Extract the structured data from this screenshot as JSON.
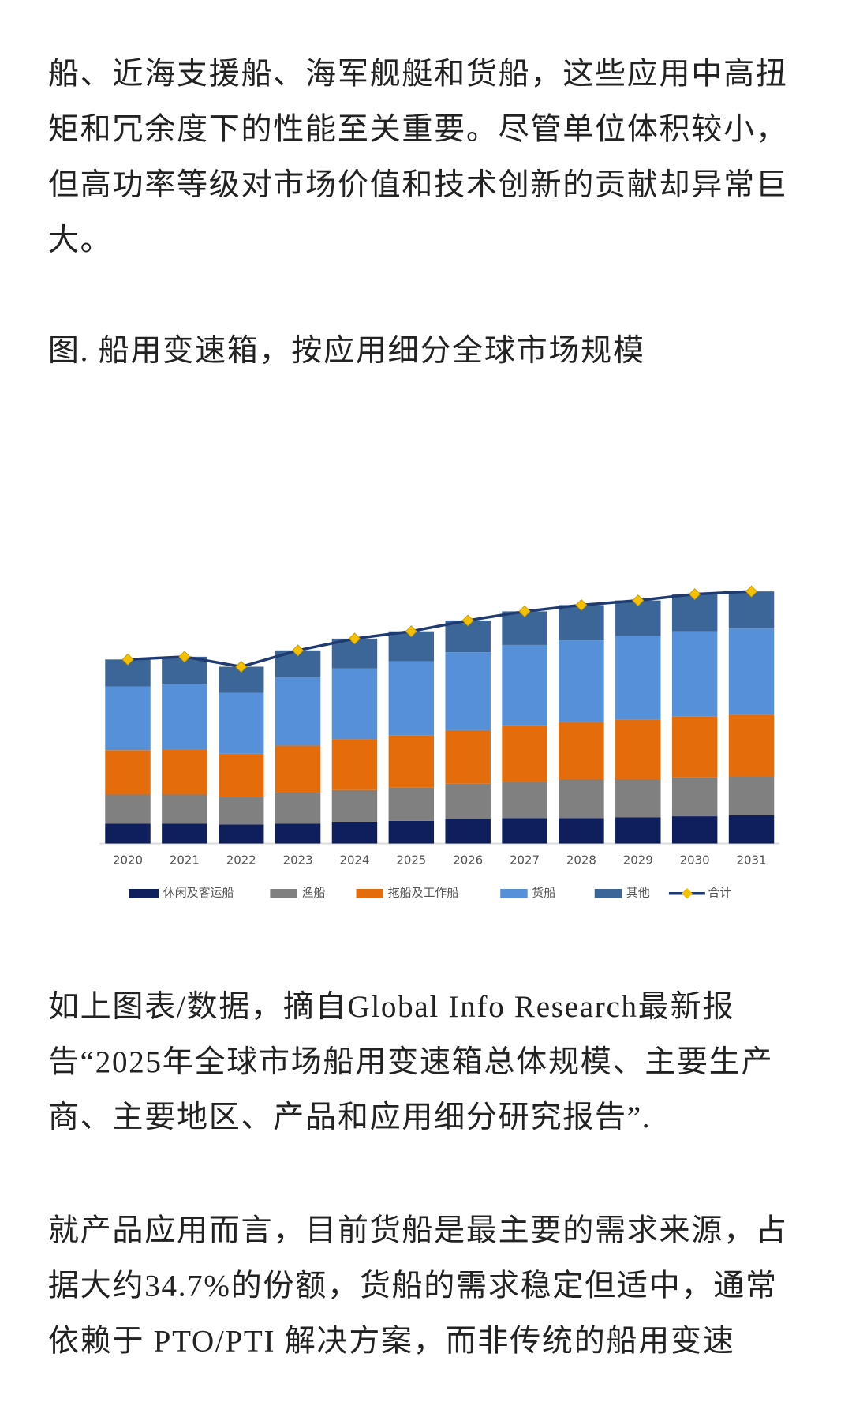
{
  "intro": {
    "lines": [
      "船、近海支援船、海军舰艇和货船，这些应用中高扭",
      "矩和冗余度下的性能至关重要。尽管单位体积较小，",
      "但高功率等级对市场价值和技术创新的贡献却异常巨",
      "大。"
    ]
  },
  "caption": "图. 船用变速箱，按应用细分全球市场规模",
  "chart_data": {
    "type": "bar",
    "stacked": true,
    "categories": [
      "2020",
      "2021",
      "2022",
      "2023",
      "2024",
      "2025",
      "2026",
      "2027",
      "2028",
      "2029",
      "2030",
      "2031"
    ],
    "series": [
      {
        "name": "休闲及客运船",
        "color": "#0f1f5e",
        "values": [
          22,
          22,
          21,
          22,
          24,
          25,
          27,
          28,
          28,
          29,
          30,
          31
        ]
      },
      {
        "name": "渔船",
        "color": "#808080",
        "values": [
          32,
          32,
          30,
          34,
          35,
          37,
          39,
          40,
          43,
          42,
          43,
          43
        ]
      },
      {
        "name": "拖船及工作船",
        "color": "#e46c0a",
        "values": [
          49,
          50,
          48,
          52,
          56,
          57,
          59,
          62,
          63,
          66,
          67,
          68
        ]
      },
      {
        "name": "货船",
        "color": "#5590d8",
        "values": [
          70,
          72,
          67,
          75,
          78,
          82,
          86,
          89,
          90,
          92,
          94,
          95
        ]
      },
      {
        "name": "其他",
        "color": "#3d6698",
        "values": [
          30,
          30,
          29,
          30,
          33,
          33,
          35,
          37,
          39,
          39,
          41,
          41
        ]
      },
      {
        "name": "合计",
        "type": "line",
        "color": "#1f3a70",
        "marker_color": "#f5c000",
        "values": [
          203,
          206,
          195,
          213,
          226,
          234,
          246,
          256,
          263,
          268,
          275,
          278
        ]
      }
    ],
    "ylim": [
      0,
      300
    ]
  },
  "body": [
    {
      "lines": [
        "如上图表/数据，摘自Global Info Research最新报",
        "告“2025年全球市场船用变速箱总体规模、主要生产",
        "商、主要地区、产品和应用细分研究报告”."
      ]
    },
    {
      "lines": [
        "就产品应用而言，目前货船是最主要的需求来源，占",
        "据大约34.7%的份额，货船的需求稳定但适中，通常",
        "依赖于 PTO/PTI 解决方案，而非传统的船用变速"
      ]
    }
  ]
}
